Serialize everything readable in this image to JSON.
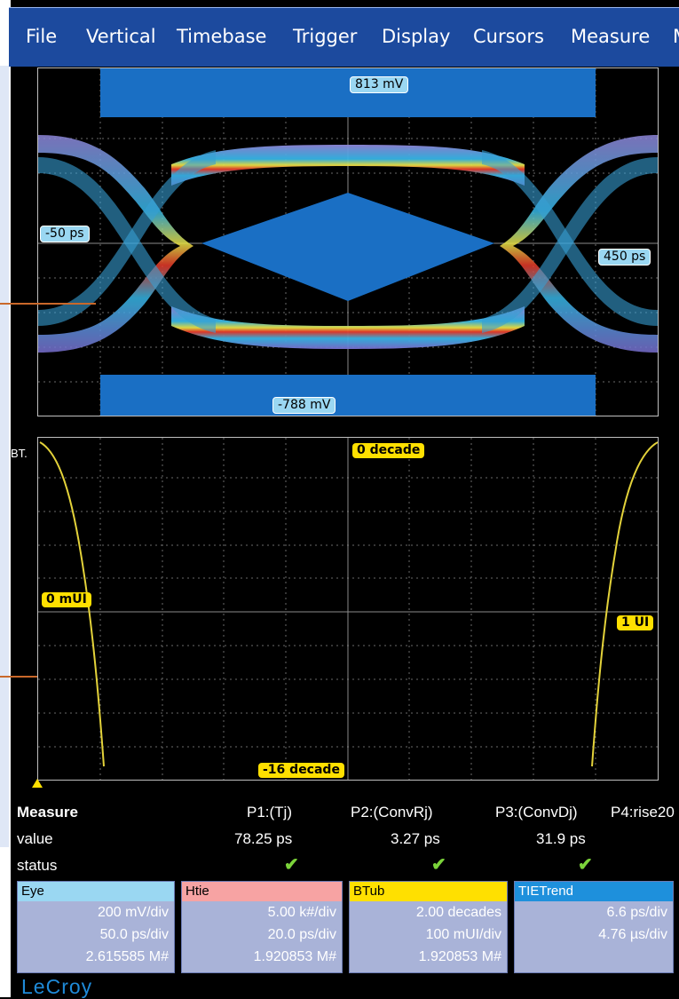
{
  "menu": {
    "items": [
      "File",
      "Vertical",
      "Timebase",
      "Trigger",
      "Display",
      "Cursors",
      "Measure",
      "M"
    ]
  },
  "eye_panel": {
    "top_label": "813 mV",
    "bottom_label": "-788 mV",
    "left_label": "-50 ps",
    "right_label": "450 ps"
  },
  "bathtub_panel": {
    "top_left_label": "BT.",
    "top_center_label": "0 decade",
    "bottom_label": "-16 decade",
    "left_label": "0 mUI",
    "right_label": "1 UI"
  },
  "measure": {
    "title": "Measure",
    "row_labels": [
      "value",
      "status"
    ],
    "params": [
      {
        "name": "P1:(Tj)",
        "value": "78.25 ps",
        "ok": true
      },
      {
        "name": "P2:(ConvRj)",
        "value": "3.27 ps",
        "ok": true
      },
      {
        "name": "P3:(ConvDj)",
        "value": "31.9 ps",
        "ok": true
      },
      {
        "name": "P4:rise20"
      }
    ]
  },
  "traces": [
    {
      "name": "Eye",
      "color": "#9ad7f2",
      "lines": [
        "200 mV/div",
        "50.0 ps/div",
        "2.615585 M#"
      ]
    },
    {
      "name": "Htie",
      "color": "#f7a3a3",
      "lines": [
        "5.00 k#/div",
        "20.0 ps/div",
        "1.920853 M#"
      ]
    },
    {
      "name": "BTub",
      "color": "#ffe000",
      "lines": [
        "2.00 decades",
        "100 mUI/div",
        "1.920853 M#"
      ]
    },
    {
      "name": "TIETrend",
      "color": "#1e90dc",
      "lines": [
        "6.6 ps/div",
        "4.76 µs/div"
      ]
    }
  ],
  "brand": "LeCroy",
  "colors": {
    "accent": "#1c4a9e",
    "grid": "#5b5b5b",
    "mask": "#1a6fc4",
    "trace": "#e3d23a"
  }
}
